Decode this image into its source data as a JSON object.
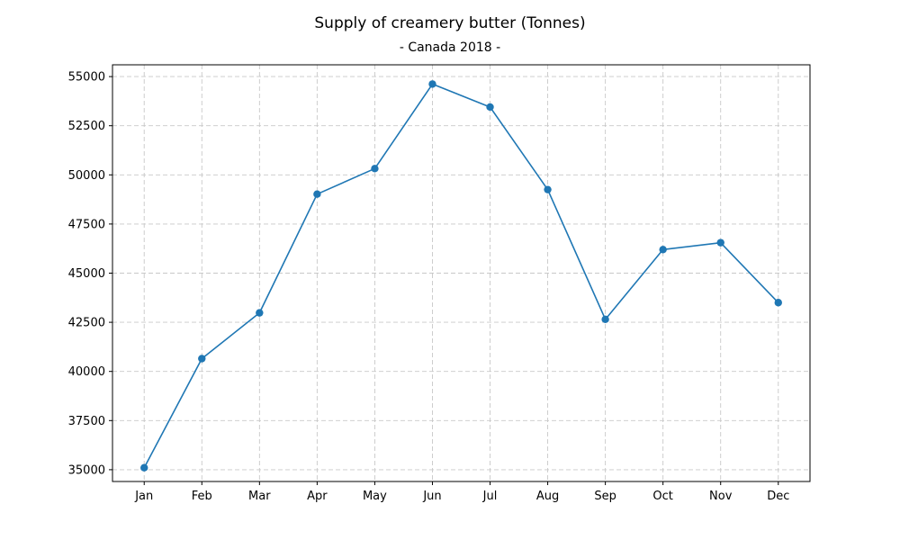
{
  "chart_data": {
    "type": "line",
    "title": "Supply of creamery butter (Tonnes)",
    "subtitle": "- Canada 2018 -",
    "xlabel": "",
    "ylabel": "",
    "categories": [
      "Jan",
      "Feb",
      "Mar",
      "Apr",
      "May",
      "Jun",
      "Jul",
      "Aug",
      "Sep",
      "Oct",
      "Nov",
      "Dec"
    ],
    "series": [
      {
        "values": [
          35100,
          40650,
          42980,
          49020,
          50320,
          54620,
          53450,
          49250,
          42650,
          46200,
          46550,
          43500
        ]
      }
    ],
    "ylim": [
      34400,
      55600
    ],
    "yticks": [
      35000,
      37500,
      40000,
      42500,
      45000,
      47500,
      50000,
      52500,
      55000
    ],
    "grid": true,
    "grid_style": "dashed",
    "legend": "none",
    "colors": {
      "line": "#1f77b4",
      "marker": "#1f77b4",
      "grid": "#c8c8c8",
      "axis": "#000000"
    }
  }
}
